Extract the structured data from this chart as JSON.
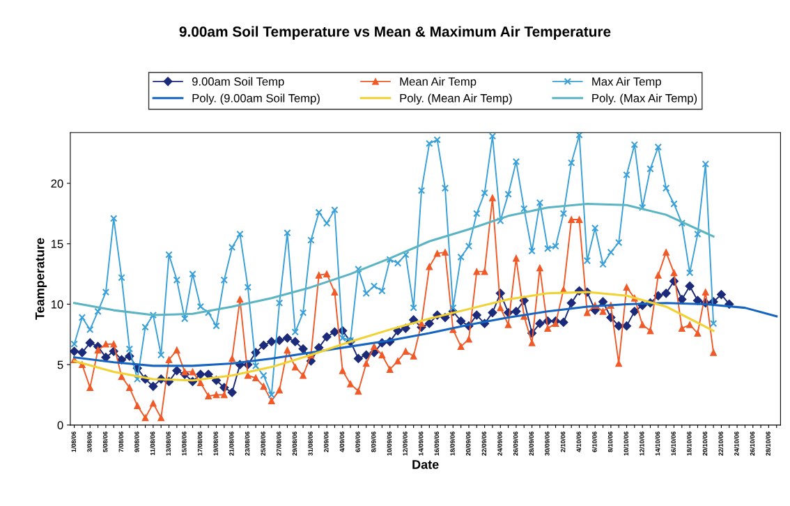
{
  "chart_data": {
    "type": "line",
    "title": "9.00am Soil Temperature vs Mean & Maximum Air Temperature",
    "xlabel": "Date",
    "ylabel": "Teamperature",
    "categories": [
      "1/08/06",
      null,
      "3/08/06",
      null,
      "5/08/06",
      null,
      "7/08/06",
      null,
      "9/08/06",
      null,
      "11/08/06",
      null,
      "13/08/06",
      null,
      "15/08/06",
      null,
      "17/08/06",
      null,
      "19/08/06",
      null,
      "21/08/06",
      null,
      "23/08/06",
      null,
      "25/08/06",
      null,
      "27/08/06",
      null,
      "29/08/06",
      null,
      "31/08/06",
      null,
      "2/09/06",
      null,
      "4/09/06",
      null,
      "6/09/06",
      null,
      "8/09/06",
      null,
      "10/09/06",
      null,
      "12/09/06",
      null,
      "14/09/06",
      null,
      "16/09/06",
      null,
      "18/09/06",
      null,
      "20/09/06",
      null,
      "22/09/06",
      null,
      "24/09/06",
      null,
      "26/09/06",
      null,
      "28/09/06",
      null,
      "30/09/06",
      null,
      "2/10/06",
      null,
      "4/10/06",
      null,
      "6/10/06",
      null,
      "8/10/06",
      null,
      "10/10/06",
      null,
      "12/10/06",
      null,
      "14/10/06",
      null,
      "16/10/06",
      null,
      "18/10/06",
      null,
      "20/10/06",
      null,
      "22/10/06",
      null,
      "24/10/06",
      null,
      "26/10/06",
      null,
      "28/10/06",
      null
    ],
    "series": [
      {
        "name": "9.00am Soil Temp",
        "marker": "diamond",
        "color": "#1c2a7a",
        "values": [
          6.1,
          6.0,
          6.8,
          6.5,
          5.6,
          6.1,
          5.4,
          5.7,
          4.7,
          3.8,
          3.2,
          3.8,
          3.6,
          4.5,
          4.2,
          3.6,
          4.2,
          4.2,
          3.7,
          3.1,
          2.7,
          5.0,
          5.0,
          6.0,
          6.6,
          6.9,
          7.0,
          7.2,
          6.9,
          6.3,
          5.3,
          6.4,
          7.3,
          7.7,
          7.8,
          6.9,
          5.5,
          5.8,
          6.0,
          6.8,
          6.9,
          7.8,
          8.0,
          8.7,
          8.1,
          8.4,
          9.1,
          8.9,
          9.4,
          8.6,
          8.2,
          9.1,
          8.4,
          9.3,
          10.9,
          9.3,
          9.4,
          10.3,
          7.6,
          8.4,
          8.6,
          8.6,
          8.5,
          10.1,
          11.1,
          11.0,
          9.5,
          10.2,
          8.9,
          8.2,
          8.2,
          9.4,
          9.9,
          10.1,
          10.7,
          10.9,
          11.9,
          10.4,
          11.5,
          10.3,
          10.1,
          10.2,
          10.8,
          10.0,
          null,
          null,
          null,
          null,
          null,
          null
        ]
      },
      {
        "name": "Mean Air Temp",
        "marker": "triangle",
        "color": "#f05a28",
        "values": [
          5.4,
          5.0,
          3.1,
          6.2,
          6.7,
          6.7,
          4.0,
          3.1,
          1.6,
          0.6,
          1.8,
          0.6,
          5.4,
          6.2,
          4.4,
          4.4,
          3.5,
          2.4,
          2.5,
          2.5,
          5.5,
          10.4,
          4.1,
          3.9,
          3.2,
          2.0,
          2.9,
          6.2,
          4.8,
          4.1,
          5.8,
          12.4,
          12.5,
          11.0,
          4.5,
          3.4,
          2.8,
          5.1,
          6.5,
          5.8,
          4.6,
          5.3,
          6.1,
          5.7,
          8.4,
          13.1,
          14.2,
          14.3,
          7.9,
          6.5,
          7.1,
          12.7,
          12.7,
          18.8,
          9.7,
          8.3,
          13.8,
          9.0,
          6.8,
          13.0,
          8.0,
          8.4,
          11.2,
          17.0,
          17.0,
          9.3,
          9.9,
          9.4,
          9.9,
          5.1,
          11.4,
          10.5,
          8.3,
          7.8,
          12.4,
          14.3,
          12.6,
          8.0,
          8.3,
          7.6,
          11.0,
          6.0,
          null,
          null,
          null,
          null,
          null,
          null,
          null,
          null
        ]
      },
      {
        "name": "Max Air Temp",
        "marker": "cross",
        "color": "#3aa0d8",
        "values": [
          6.7,
          8.9,
          7.9,
          9.4,
          11.0,
          17.1,
          12.2,
          6.3,
          3.8,
          8.1,
          9.1,
          5.8,
          14.1,
          12.0,
          8.8,
          12.5,
          9.8,
          9.3,
          8.2,
          12.0,
          14.7,
          15.8,
          11.4,
          4.9,
          4.1,
          2.5,
          10.1,
          15.9,
          7.7,
          9.3,
          15.3,
          17.6,
          16.7,
          17.8,
          7.2,
          7.0,
          12.9,
          10.9,
          11.5,
          11.1,
          13.7,
          13.4,
          14.1,
          9.7,
          19.4,
          23.3,
          23.6,
          19.6,
          9.7,
          13.9,
          14.8,
          17.5,
          19.2,
          23.9,
          16.9,
          19.1,
          21.8,
          17.9,
          14.4,
          18.4,
          14.6,
          14.8,
          17.5,
          21.7,
          24.0,
          13.6,
          16.3,
          13.3,
          14.3,
          15.1,
          20.7,
          23.2,
          18.0,
          21.2,
          23.0,
          19.6,
          18.3,
          16.7,
          12.6,
          15.8,
          21.6,
          8.4,
          null,
          null,
          null,
          null,
          null,
          null,
          null,
          null
        ]
      },
      {
        "name": "Poly. (9.00am Soil Temp)",
        "marker": "none",
        "color": "#1565c0",
        "values": [
          5.6,
          null,
          null,
          null,
          null,
          5.2,
          null,
          null,
          null,
          null,
          4.9,
          null,
          null,
          null,
          null,
          4.9,
          null,
          null,
          null,
          null,
          5.1,
          null,
          null,
          null,
          null,
          5.5,
          null,
          null,
          null,
          null,
          6.0,
          null,
          null,
          null,
          null,
          6.5,
          null,
          null,
          null,
          null,
          7.0,
          null,
          null,
          null,
          null,
          7.6,
          null,
          null,
          null,
          null,
          8.3,
          null,
          null,
          null,
          null,
          8.9,
          null,
          null,
          null,
          null,
          9.4,
          null,
          null,
          null,
          null,
          9.8,
          null,
          null,
          null,
          null,
          10.0,
          null,
          null,
          null,
          null,
          10.1,
          null,
          null,
          null,
          null,
          10.0,
          null,
          null,
          null,
          null,
          9.7,
          null,
          null,
          null,
          9.0
        ]
      },
      {
        "name": "Poly. (Mean Air Temp)",
        "marker": "none",
        "color": "#f2d231",
        "values": [
          5.3,
          null,
          null,
          null,
          null,
          4.4,
          null,
          null,
          null,
          null,
          3.8,
          null,
          null,
          null,
          null,
          3.7,
          null,
          null,
          null,
          null,
          4.1,
          null,
          null,
          null,
          null,
          4.8,
          null,
          null,
          null,
          null,
          5.8,
          null,
          null,
          null,
          null,
          6.9,
          null,
          null,
          null,
          null,
          7.9,
          null,
          null,
          null,
          null,
          8.8,
          null,
          null,
          null,
          null,
          9.6,
          null,
          null,
          null,
          null,
          10.4,
          null,
          null,
          null,
          null,
          10.9,
          null,
          null,
          null,
          null,
          11.0,
          null,
          null,
          null,
          null,
          10.7,
          null,
          null,
          null,
          null,
          9.8,
          null,
          null,
          null,
          null,
          null,
          7.8,
          null,
          null,
          null,
          null,
          null,
          null,
          null,
          null
        ]
      },
      {
        "name": "Poly. (Max Air Temp)",
        "marker": "none",
        "color": "#5ab4c4",
        "values": [
          10.1,
          null,
          null,
          null,
          null,
          9.5,
          null,
          null,
          null,
          null,
          9.1,
          null,
          null,
          null,
          null,
          9.2,
          null,
          null,
          null,
          null,
          9.8,
          null,
          null,
          null,
          null,
          10.5,
          null,
          null,
          null,
          null,
          11.4,
          null,
          null,
          null,
          null,
          12.5,
          null,
          null,
          null,
          null,
          13.8,
          null,
          null,
          null,
          null,
          15.2,
          null,
          null,
          null,
          null,
          16.2,
          null,
          null,
          null,
          null,
          17.3,
          null,
          null,
          null,
          null,
          18.0,
          null,
          null,
          null,
          null,
          18.3,
          null,
          null,
          null,
          null,
          18.2,
          null,
          null,
          null,
          null,
          17.4,
          null,
          null,
          null,
          null,
          null,
          15.6,
          null,
          null,
          null,
          null,
          null,
          null,
          null,
          null
        ]
      }
    ],
    "ylim": [
      0,
      24.2
    ],
    "yticks": [
      0,
      5,
      10,
      15,
      20
    ],
    "grid": false,
    "legend": "top"
  }
}
